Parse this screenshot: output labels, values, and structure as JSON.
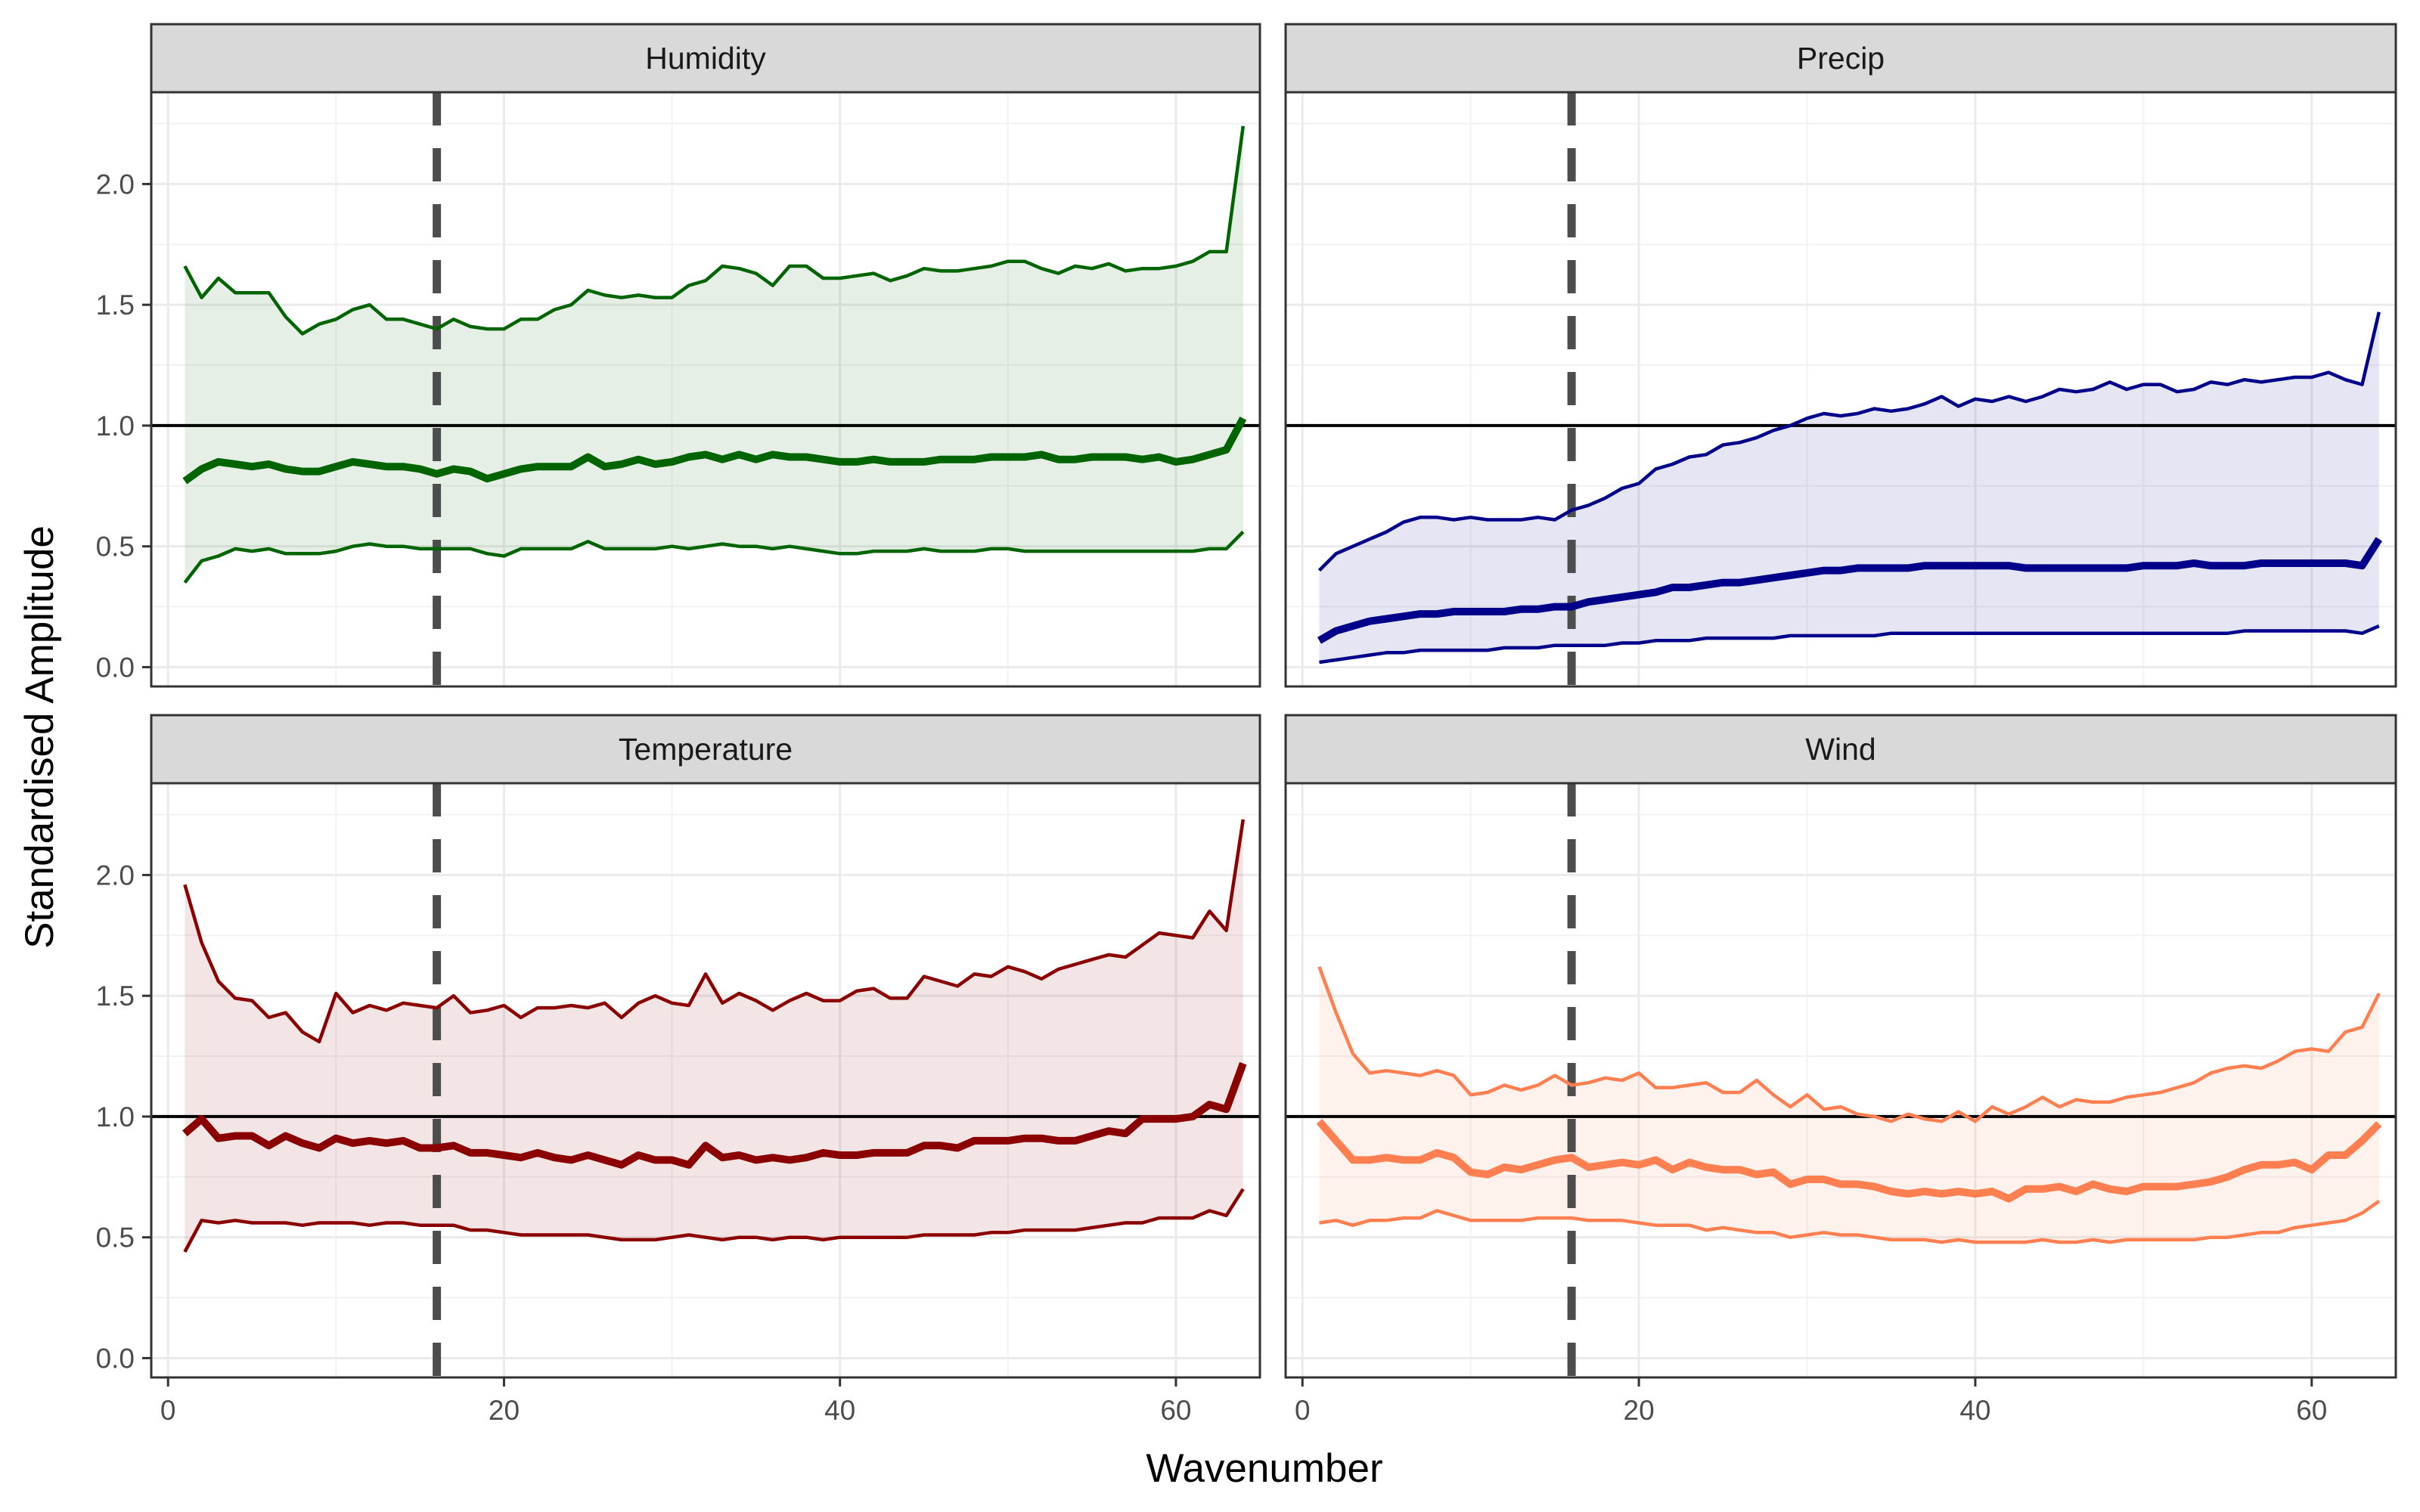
{
  "chart_data": {
    "type": "line",
    "xlabel": "Wavenumber",
    "ylabel": "Standardised Amplitude",
    "xlim": [
      -1,
      65
    ],
    "ylim": [
      -0.08,
      2.38
    ],
    "x_ticks": [
      0,
      20,
      40,
      60
    ],
    "y_ticks": [
      0.0,
      0.5,
      1.0,
      1.5,
      2.0
    ],
    "y_tick_labels": [
      "0.0",
      "0.5",
      "1.0",
      "1.5",
      "2.0"
    ],
    "reference_hline": 1.0,
    "reference_vline": 16,
    "grid": true,
    "panels": [
      {
        "name": "Humidity",
        "color": "#006400",
        "x": [
          1,
          2,
          3,
          4,
          5,
          6,
          7,
          8,
          9,
          10,
          11,
          12,
          13,
          14,
          15,
          16,
          17,
          18,
          19,
          20,
          21,
          22,
          23,
          24,
          25,
          26,
          27,
          28,
          29,
          30,
          31,
          32,
          33,
          34,
          35,
          36,
          37,
          38,
          39,
          40,
          41,
          42,
          43,
          44,
          45,
          46,
          47,
          48,
          49,
          50,
          51,
          52,
          53,
          54,
          55,
          56,
          57,
          58,
          59,
          60,
          61,
          62,
          63,
          64
        ],
        "upper": [
          1.66,
          1.53,
          1.61,
          1.55,
          1.55,
          1.55,
          1.45,
          1.38,
          1.42,
          1.44,
          1.48,
          1.5,
          1.44,
          1.44,
          1.42,
          1.4,
          1.44,
          1.41,
          1.4,
          1.4,
          1.44,
          1.44,
          1.48,
          1.5,
          1.56,
          1.54,
          1.53,
          1.54,
          1.53,
          1.53,
          1.58,
          1.6,
          1.66,
          1.65,
          1.63,
          1.58,
          1.66,
          1.66,
          1.61,
          1.61,
          1.62,
          1.63,
          1.6,
          1.62,
          1.65,
          1.64,
          1.64,
          1.65,
          1.66,
          1.68,
          1.68,
          1.65,
          1.63,
          1.66,
          1.65,
          1.67,
          1.64,
          1.65,
          1.65,
          1.66,
          1.68,
          1.72,
          1.72,
          2.24
        ],
        "median": [
          0.77,
          0.82,
          0.85,
          0.84,
          0.83,
          0.84,
          0.82,
          0.81,
          0.81,
          0.83,
          0.85,
          0.84,
          0.83,
          0.83,
          0.82,
          0.8,
          0.82,
          0.81,
          0.78,
          0.8,
          0.82,
          0.83,
          0.83,
          0.83,
          0.87,
          0.83,
          0.84,
          0.86,
          0.84,
          0.85,
          0.87,
          0.88,
          0.86,
          0.88,
          0.86,
          0.88,
          0.87,
          0.87,
          0.86,
          0.85,
          0.85,
          0.86,
          0.85,
          0.85,
          0.85,
          0.86,
          0.86,
          0.86,
          0.87,
          0.87,
          0.87,
          0.88,
          0.86,
          0.86,
          0.87,
          0.87,
          0.87,
          0.86,
          0.87,
          0.85,
          0.86,
          0.88,
          0.9,
          1.03
        ],
        "lower": [
          0.35,
          0.44,
          0.46,
          0.49,
          0.48,
          0.49,
          0.47,
          0.47,
          0.47,
          0.48,
          0.5,
          0.51,
          0.5,
          0.5,
          0.49,
          0.49,
          0.49,
          0.49,
          0.47,
          0.46,
          0.49,
          0.49,
          0.49,
          0.49,
          0.52,
          0.49,
          0.49,
          0.49,
          0.49,
          0.5,
          0.49,
          0.5,
          0.51,
          0.5,
          0.5,
          0.49,
          0.5,
          0.49,
          0.48,
          0.47,
          0.47,
          0.48,
          0.48,
          0.48,
          0.49,
          0.48,
          0.48,
          0.48,
          0.49,
          0.49,
          0.48,
          0.48,
          0.48,
          0.48,
          0.48,
          0.48,
          0.48,
          0.48,
          0.48,
          0.48,
          0.48,
          0.49,
          0.49,
          0.56
        ]
      },
      {
        "name": "Precip",
        "color": "#00008B",
        "x": [
          1,
          2,
          3,
          4,
          5,
          6,
          7,
          8,
          9,
          10,
          11,
          12,
          13,
          14,
          15,
          16,
          17,
          18,
          19,
          20,
          21,
          22,
          23,
          24,
          25,
          26,
          27,
          28,
          29,
          30,
          31,
          32,
          33,
          34,
          35,
          36,
          37,
          38,
          39,
          40,
          41,
          42,
          43,
          44,
          45,
          46,
          47,
          48,
          49,
          50,
          51,
          52,
          53,
          54,
          55,
          56,
          57,
          58,
          59,
          60,
          61,
          62,
          63,
          64
        ],
        "upper": [
          0.4,
          0.47,
          0.5,
          0.53,
          0.56,
          0.6,
          0.62,
          0.62,
          0.61,
          0.62,
          0.61,
          0.61,
          0.61,
          0.62,
          0.61,
          0.65,
          0.67,
          0.7,
          0.74,
          0.76,
          0.82,
          0.84,
          0.87,
          0.88,
          0.92,
          0.93,
          0.95,
          0.98,
          1.0,
          1.03,
          1.05,
          1.04,
          1.05,
          1.07,
          1.06,
          1.07,
          1.09,
          1.12,
          1.08,
          1.11,
          1.1,
          1.12,
          1.1,
          1.12,
          1.15,
          1.14,
          1.15,
          1.18,
          1.15,
          1.17,
          1.17,
          1.14,
          1.15,
          1.18,
          1.17,
          1.19,
          1.18,
          1.19,
          1.2,
          1.2,
          1.22,
          1.19,
          1.17,
          1.47
        ],
        "median": [
          0.11,
          0.15,
          0.17,
          0.19,
          0.2,
          0.21,
          0.22,
          0.22,
          0.23,
          0.23,
          0.23,
          0.23,
          0.24,
          0.24,
          0.25,
          0.25,
          0.27,
          0.28,
          0.29,
          0.3,
          0.31,
          0.33,
          0.33,
          0.34,
          0.35,
          0.35,
          0.36,
          0.37,
          0.38,
          0.39,
          0.4,
          0.4,
          0.41,
          0.41,
          0.41,
          0.41,
          0.42,
          0.42,
          0.42,
          0.42,
          0.42,
          0.42,
          0.41,
          0.41,
          0.41,
          0.41,
          0.41,
          0.41,
          0.41,
          0.42,
          0.42,
          0.42,
          0.43,
          0.42,
          0.42,
          0.42,
          0.43,
          0.43,
          0.43,
          0.43,
          0.43,
          0.43,
          0.42,
          0.53
        ],
        "lower": [
          0.02,
          0.03,
          0.04,
          0.05,
          0.06,
          0.06,
          0.07,
          0.07,
          0.07,
          0.07,
          0.07,
          0.08,
          0.08,
          0.08,
          0.09,
          0.09,
          0.09,
          0.09,
          0.1,
          0.1,
          0.11,
          0.11,
          0.11,
          0.12,
          0.12,
          0.12,
          0.12,
          0.12,
          0.13,
          0.13,
          0.13,
          0.13,
          0.13,
          0.13,
          0.14,
          0.14,
          0.14,
          0.14,
          0.14,
          0.14,
          0.14,
          0.14,
          0.14,
          0.14,
          0.14,
          0.14,
          0.14,
          0.14,
          0.14,
          0.14,
          0.14,
          0.14,
          0.14,
          0.14,
          0.14,
          0.15,
          0.15,
          0.15,
          0.15,
          0.15,
          0.15,
          0.15,
          0.14,
          0.17
        ]
      },
      {
        "name": "Temperature",
        "color": "#8B0000",
        "x": [
          1,
          2,
          3,
          4,
          5,
          6,
          7,
          8,
          9,
          10,
          11,
          12,
          13,
          14,
          15,
          16,
          17,
          18,
          19,
          20,
          21,
          22,
          23,
          24,
          25,
          26,
          27,
          28,
          29,
          30,
          31,
          32,
          33,
          34,
          35,
          36,
          37,
          38,
          39,
          40,
          41,
          42,
          43,
          44,
          45,
          46,
          47,
          48,
          49,
          50,
          51,
          52,
          53,
          54,
          55,
          56,
          57,
          58,
          59,
          60,
          61,
          62,
          63,
          64
        ],
        "upper": [
          1.96,
          1.72,
          1.56,
          1.49,
          1.48,
          1.41,
          1.43,
          1.35,
          1.31,
          1.51,
          1.43,
          1.46,
          1.44,
          1.47,
          1.46,
          1.45,
          1.5,
          1.43,
          1.44,
          1.46,
          1.41,
          1.45,
          1.45,
          1.46,
          1.45,
          1.47,
          1.41,
          1.47,
          1.5,
          1.47,
          1.46,
          1.59,
          1.47,
          1.51,
          1.48,
          1.44,
          1.48,
          1.51,
          1.48,
          1.48,
          1.52,
          1.53,
          1.49,
          1.49,
          1.58,
          1.56,
          1.54,
          1.59,
          1.58,
          1.62,
          1.6,
          1.57,
          1.61,
          1.63,
          1.65,
          1.67,
          1.66,
          1.71,
          1.76,
          1.75,
          1.74,
          1.85,
          1.77,
          2.23
        ],
        "median": [
          0.93,
          0.99,
          0.91,
          0.92,
          0.92,
          0.88,
          0.92,
          0.89,
          0.87,
          0.91,
          0.89,
          0.9,
          0.89,
          0.9,
          0.87,
          0.87,
          0.88,
          0.85,
          0.85,
          0.84,
          0.83,
          0.85,
          0.83,
          0.82,
          0.84,
          0.82,
          0.8,
          0.84,
          0.82,
          0.82,
          0.8,
          0.88,
          0.83,
          0.84,
          0.82,
          0.83,
          0.82,
          0.83,
          0.85,
          0.84,
          0.84,
          0.85,
          0.85,
          0.85,
          0.88,
          0.88,
          0.87,
          0.9,
          0.9,
          0.9,
          0.91,
          0.91,
          0.9,
          0.9,
          0.92,
          0.94,
          0.93,
          0.99,
          0.99,
          0.99,
          1.0,
          1.05,
          1.03,
          1.22
        ],
        "lower": [
          0.44,
          0.57,
          0.56,
          0.57,
          0.56,
          0.56,
          0.56,
          0.55,
          0.56,
          0.56,
          0.56,
          0.55,
          0.56,
          0.56,
          0.55,
          0.55,
          0.55,
          0.53,
          0.53,
          0.52,
          0.51,
          0.51,
          0.51,
          0.51,
          0.51,
          0.5,
          0.49,
          0.49,
          0.49,
          0.5,
          0.51,
          0.5,
          0.49,
          0.5,
          0.5,
          0.49,
          0.5,
          0.5,
          0.49,
          0.5,
          0.5,
          0.5,
          0.5,
          0.5,
          0.51,
          0.51,
          0.51,
          0.51,
          0.52,
          0.52,
          0.53,
          0.53,
          0.53,
          0.53,
          0.54,
          0.55,
          0.56,
          0.56,
          0.58,
          0.58,
          0.58,
          0.61,
          0.59,
          0.7
        ]
      },
      {
        "name": "Wind",
        "color": "#FF7F50",
        "x": [
          1,
          2,
          3,
          4,
          5,
          6,
          7,
          8,
          9,
          10,
          11,
          12,
          13,
          14,
          15,
          16,
          17,
          18,
          19,
          20,
          21,
          22,
          23,
          24,
          25,
          26,
          27,
          28,
          29,
          30,
          31,
          32,
          33,
          34,
          35,
          36,
          37,
          38,
          39,
          40,
          41,
          42,
          43,
          44,
          45,
          46,
          47,
          48,
          49,
          50,
          51,
          52,
          53,
          54,
          55,
          56,
          57,
          58,
          59,
          60,
          61,
          62,
          63,
          64
        ],
        "upper": [
          1.62,
          1.43,
          1.26,
          1.18,
          1.19,
          1.18,
          1.17,
          1.19,
          1.17,
          1.09,
          1.1,
          1.13,
          1.11,
          1.13,
          1.17,
          1.13,
          1.14,
          1.16,
          1.15,
          1.18,
          1.12,
          1.12,
          1.13,
          1.14,
          1.1,
          1.1,
          1.15,
          1.09,
          1.04,
          1.09,
          1.03,
          1.04,
          1.01,
          1.0,
          0.98,
          1.01,
          0.99,
          0.98,
          1.02,
          0.98,
          1.04,
          1.01,
          1.04,
          1.08,
          1.04,
          1.07,
          1.06,
          1.06,
          1.08,
          1.09,
          1.1,
          1.12,
          1.14,
          1.18,
          1.2,
          1.21,
          1.2,
          1.23,
          1.27,
          1.28,
          1.27,
          1.35,
          1.37,
          1.51
        ],
        "median": [
          0.98,
          0.9,
          0.82,
          0.82,
          0.83,
          0.82,
          0.82,
          0.85,
          0.83,
          0.77,
          0.76,
          0.79,
          0.78,
          0.8,
          0.82,
          0.83,
          0.79,
          0.8,
          0.81,
          0.8,
          0.82,
          0.78,
          0.81,
          0.79,
          0.78,
          0.78,
          0.76,
          0.77,
          0.72,
          0.74,
          0.74,
          0.72,
          0.72,
          0.71,
          0.69,
          0.68,
          0.69,
          0.68,
          0.69,
          0.68,
          0.69,
          0.66,
          0.7,
          0.7,
          0.71,
          0.69,
          0.72,
          0.7,
          0.69,
          0.71,
          0.71,
          0.71,
          0.72,
          0.73,
          0.75,
          0.78,
          0.8,
          0.8,
          0.81,
          0.78,
          0.84,
          0.84,
          0.9,
          0.97
        ],
        "lower": [
          0.56,
          0.57,
          0.55,
          0.57,
          0.57,
          0.58,
          0.58,
          0.61,
          0.59,
          0.57,
          0.57,
          0.57,
          0.57,
          0.58,
          0.58,
          0.58,
          0.57,
          0.57,
          0.57,
          0.56,
          0.55,
          0.55,
          0.55,
          0.53,
          0.54,
          0.53,
          0.52,
          0.52,
          0.5,
          0.51,
          0.52,
          0.51,
          0.51,
          0.5,
          0.49,
          0.49,
          0.49,
          0.48,
          0.49,
          0.48,
          0.48,
          0.48,
          0.48,
          0.49,
          0.48,
          0.48,
          0.49,
          0.48,
          0.49,
          0.49,
          0.49,
          0.49,
          0.49,
          0.5,
          0.5,
          0.51,
          0.52,
          0.52,
          0.54,
          0.55,
          0.56,
          0.57,
          0.6,
          0.65
        ]
      }
    ]
  }
}
